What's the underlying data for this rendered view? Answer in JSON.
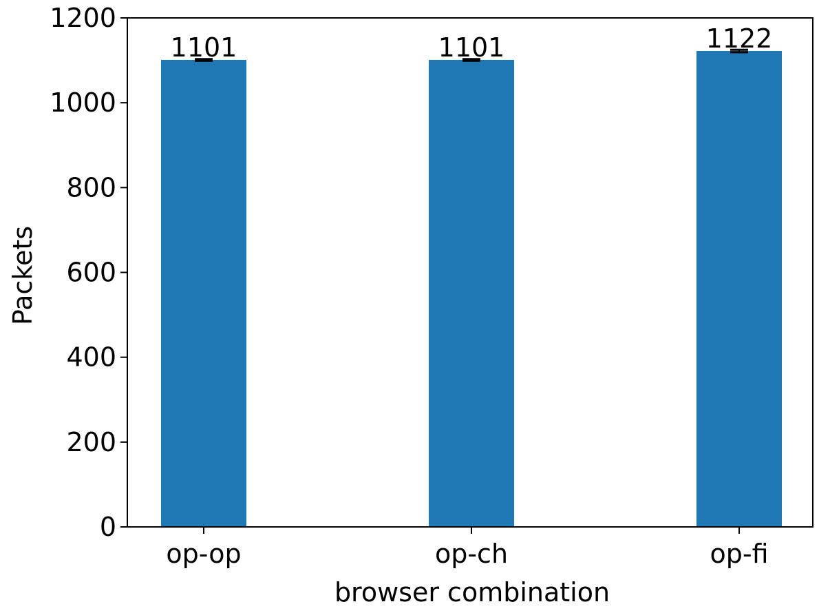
{
  "chart_data": {
    "type": "bar",
    "title": "",
    "xlabel": "browser combination",
    "ylabel": "Packets",
    "categories": [
      "op-op",
      "op-ch",
      "op-fi"
    ],
    "values": [
      1101,
      1101,
      1122
    ],
    "error": [
      2,
      2,
      3
    ],
    "data_labels": [
      "1101",
      "1101",
      "1122"
    ],
    "ylim": [
      0,
      1200
    ],
    "yticks": [
      0,
      200,
      400,
      600,
      800,
      1000,
      1200
    ],
    "ytick_labels": [
      "0",
      "200",
      "400",
      "600",
      "800",
      "1000",
      "1200"
    ],
    "grid": false,
    "legend": "none",
    "colors": {
      "bar": "#1f77b4",
      "error": "#000000",
      "axis": "#000000"
    }
  }
}
